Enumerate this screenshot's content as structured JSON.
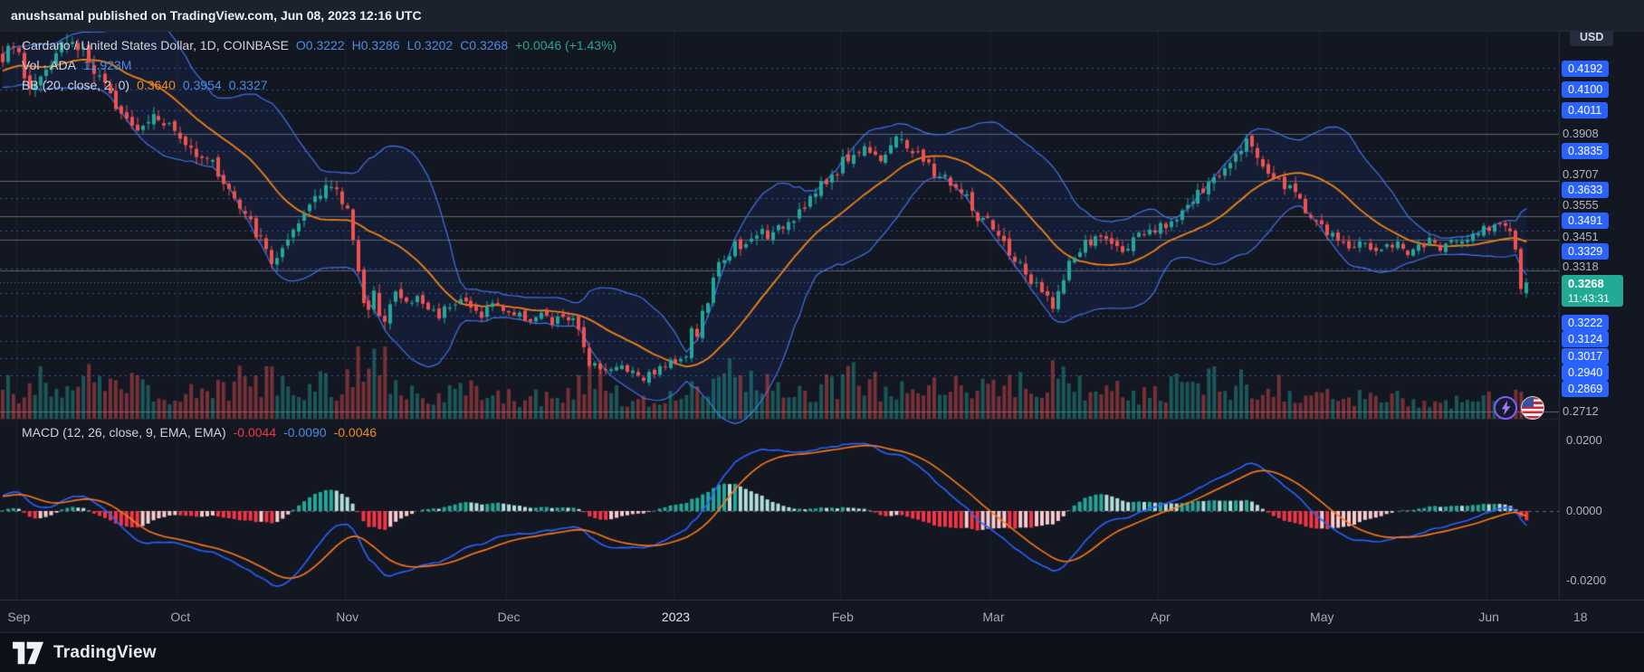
{
  "banner": {
    "text": "anushsamal published on TradingView.com, Jun 08, 2023 12:16 UTC"
  },
  "legend": {
    "title": "Cardano / United States Dollar, 1D, COINBASE",
    "ohlc": {
      "open": "O0.3222",
      "high": "H0.3286",
      "low": "L0.3202",
      "close": "C0.3268",
      "change": "+0.0046 (+1.43%)"
    },
    "volume_label": "Vol · ADA",
    "volume_value": "11.923M",
    "bb_label": "BB (20, close, 2, 0)",
    "bb_basis": "0.3640",
    "bb_upper": "0.3954",
    "bb_lower": "0.3327"
  },
  "macd_legend": {
    "label": "MACD (12, 26, close, 9, EMA, EMA)",
    "hist": "-0.0044",
    "macd": "-0.0090",
    "signal": "-0.0046"
  },
  "price_axis": {
    "currency_label": "USD",
    "labels": [
      {
        "text": "0.4192",
        "kind": "alert"
      },
      {
        "text": "0.4100",
        "kind": "alert"
      },
      {
        "text": "0.4011",
        "kind": "alert"
      },
      {
        "text": "0.3908",
        "kind": "tick"
      },
      {
        "text": "0.3835",
        "kind": "alert"
      },
      {
        "text": "0.3707",
        "kind": "tick"
      },
      {
        "text": "0.3633",
        "kind": "alert"
      },
      {
        "text": "0.3555",
        "kind": "tick"
      },
      {
        "text": "0.3491",
        "kind": "alert"
      },
      {
        "text": "0.3451",
        "kind": "tick"
      },
      {
        "text": "0.3329",
        "kind": "alert"
      },
      {
        "text": "0.3318",
        "kind": "tick"
      },
      {
        "text": "0.3222",
        "kind": "alert"
      },
      {
        "text": "0.3124",
        "kind": "alert"
      },
      {
        "text": "0.3017",
        "kind": "alert"
      },
      {
        "text": "0.2940",
        "kind": "alert"
      },
      {
        "text": "0.2869",
        "kind": "alert"
      },
      {
        "text": "0.2712",
        "kind": "tick"
      }
    ],
    "last_price": "0.3268",
    "countdown": "11:43:31"
  },
  "footer": {
    "brand": "TradingView"
  },
  "icons": {
    "boost": "lightning-icon",
    "flag": "us-flag-icon",
    "brand": "tradingview-logo-icon"
  },
  "colors": {
    "background": "#131722",
    "up": "#26a69a",
    "down": "#ef5350",
    "bb_band": "#4477f5",
    "bb_basis": "#f08319",
    "macd_line": "#2962ff",
    "signal_line": "#ff7a1a",
    "alert_blue": "#2962ff",
    "last_price_green": "#22ab94",
    "hist_pos": "#26a69a",
    "hist_pos_weak": "#b2dfdb",
    "hist_neg": "#f23645",
    "hist_neg_weak": "#fccbcd"
  },
  "chart_data": {
    "type": "candlestick",
    "title": "Cardano / United States Dollar, 1D, COINBASE",
    "interval": "1D",
    "exchange": "COINBASE",
    "price_axis_range": {
      "top": 0.435,
      "bottom": 0.268
    },
    "last_candle": {
      "open": 0.3222,
      "high": 0.3286,
      "low": 0.3202,
      "close": 0.3268,
      "change": "+0.0046",
      "change_pct": "+1.43%"
    },
    "volume_value_label": "11.923M",
    "bollinger": {
      "period": 20,
      "stdev_mult": 2,
      "basis": 0.364,
      "upper": 0.3954,
      "lower": 0.3327
    },
    "macd_params": {
      "fast": 12,
      "slow": 26,
      "signal": 9,
      "histogram_value": -0.0044,
      "macd_value": -0.009,
      "signal_value": -0.0046
    },
    "macd_axis": {
      "labels": [
        "0.0200",
        "0.0000",
        "-0.0200"
      ],
      "values": [
        0.02,
        0.0,
        -0.02
      ]
    },
    "alert_levels": [
      0.4192,
      0.41,
      0.4011,
      0.3835,
      0.3633,
      0.3491,
      0.3329,
      0.3222,
      0.3124,
      0.3017,
      0.294,
      0.2869
    ],
    "line_levels": [
      0.3908,
      0.3707,
      0.3555,
      0.3451,
      0.3318,
      0.2712
    ],
    "months": [
      {
        "label": "Sep",
        "day": 0
      },
      {
        "label": "Oct",
        "day": 30
      },
      {
        "label": "Nov",
        "day": 61
      },
      {
        "label": "Dec",
        "day": 91
      },
      {
        "label": "2023",
        "day": 122,
        "emph": true
      },
      {
        "label": "Feb",
        "day": 153
      },
      {
        "label": "Mar",
        "day": 181
      },
      {
        "label": "Apr",
        "day": 212
      },
      {
        "label": "May",
        "day": 242
      },
      {
        "label": "Jun",
        "day": 273
      },
      {
        "label": "18",
        "day": 290,
        "minor": true
      }
    ],
    "close_path": [
      [
        -3,
        0.424
      ],
      [
        -1,
        0.4305
      ],
      [
        1,
        0.418
      ],
      [
        2,
        0.41
      ],
      [
        4,
        0.4165
      ],
      [
        6,
        0.424
      ],
      [
        8,
        0.4325
      ],
      [
        10,
        0.43
      ],
      [
        12,
        0.4275
      ],
      [
        14,
        0.417
      ],
      [
        16,
        0.41
      ],
      [
        18,
        0.4045
      ],
      [
        20,
        0.399
      ],
      [
        22,
        0.3945
      ],
      [
        24,
        0.397
      ],
      [
        25,
        0.401
      ],
      [
        27,
        0.3965
      ],
      [
        29,
        0.392
      ],
      [
        31,
        0.3855
      ],
      [
        33,
        0.3835
      ],
      [
        35,
        0.3815
      ],
      [
        37,
        0.374
      ],
      [
        39,
        0.367
      ],
      [
        41,
        0.358
      ],
      [
        43,
        0.352
      ],
      [
        45,
        0.3445
      ],
      [
        47,
        0.336
      ],
      [
        49,
        0.34
      ],
      [
        51,
        0.347
      ],
      [
        53,
        0.356
      ],
      [
        55,
        0.365
      ],
      [
        57,
        0.3695
      ],
      [
        59,
        0.365
      ],
      [
        61,
        0.358
      ],
      [
        62,
        0.3475
      ],
      [
        63,
        0.334
      ],
      [
        64,
        0.318
      ],
      [
        65,
        0.3125
      ],
      [
        66,
        0.32
      ],
      [
        67,
        0.3155
      ],
      [
        68,
        0.313
      ],
      [
        70,
        0.322
      ],
      [
        72,
        0.3175
      ],
      [
        74,
        0.32
      ],
      [
        76,
        0.3155
      ],
      [
        78,
        0.313
      ],
      [
        80,
        0.318
      ],
      [
        82,
        0.32
      ],
      [
        84,
        0.3155
      ],
      [
        86,
        0.313
      ],
      [
        88,
        0.318
      ],
      [
        90,
        0.3155
      ],
      [
        92,
        0.313
      ],
      [
        95,
        0.311
      ],
      [
        97,
        0.313
      ],
      [
        99,
        0.309
      ],
      [
        101,
        0.3125
      ],
      [
        103,
        0.3095
      ],
      [
        104,
        0.305
      ],
      [
        105,
        0.2995
      ],
      [
        106,
        0.293
      ],
      [
        108,
        0.291
      ],
      [
        110,
        0.2885
      ],
      [
        112,
        0.291
      ],
      [
        114,
        0.2885
      ],
      [
        116,
        0.286
      ],
      [
        118,
        0.2885
      ],
      [
        120,
        0.291
      ],
      [
        122,
        0.2935
      ],
      [
        124,
        0.296
      ],
      [
        125,
        0.3065
      ],
      [
        126,
        0.304
      ],
      [
        127,
        0.313
      ],
      [
        128,
        0.319
      ],
      [
        129,
        0.327
      ],
      [
        130,
        0.3335
      ],
      [
        131,
        0.338
      ],
      [
        133,
        0.343
      ],
      [
        134,
        0.3395
      ],
      [
        136,
        0.345
      ],
      [
        138,
        0.349
      ],
      [
        140,
        0.3465
      ],
      [
        142,
        0.352
      ],
      [
        144,
        0.356
      ],
      [
        146,
        0.361
      ],
      [
        148,
        0.3655
      ],
      [
        150,
        0.37
      ],
      [
        152,
        0.376
      ],
      [
        154,
        0.381
      ],
      [
        156,
        0.3835
      ],
      [
        158,
        0.3855
      ],
      [
        160,
        0.381
      ],
      [
        162,
        0.385
      ],
      [
        164,
        0.389
      ],
      [
        166,
        0.3835
      ],
      [
        168,
        0.379
      ],
      [
        170,
        0.374
      ],
      [
        172,
        0.372
      ],
      [
        174,
        0.3675
      ],
      [
        176,
        0.363
      ],
      [
        178,
        0.354
      ],
      [
        180,
        0.352
      ],
      [
        182,
        0.3455
      ],
      [
        184,
        0.34
      ],
      [
        186,
        0.3335
      ],
      [
        188,
        0.327
      ],
      [
        190,
        0.322
      ],
      [
        192,
        0.318
      ],
      [
        193,
        0.3225
      ],
      [
        194,
        0.327
      ],
      [
        195,
        0.334
      ],
      [
        196,
        0.338
      ],
      [
        198,
        0.343
      ],
      [
        200,
        0.3455
      ],
      [
        202,
        0.346
      ],
      [
        204,
        0.341
      ],
      [
        206,
        0.343
      ],
      [
        208,
        0.346
      ],
      [
        210,
        0.3475
      ],
      [
        212,
        0.35
      ],
      [
        214,
        0.354
      ],
      [
        216,
        0.358
      ],
      [
        218,
        0.362
      ],
      [
        220,
        0.366
      ],
      [
        222,
        0.371
      ],
      [
        224,
        0.377
      ],
      [
        226,
        0.385
      ],
      [
        228,
        0.3885
      ],
      [
        230,
        0.381
      ],
      [
        232,
        0.375
      ],
      [
        234,
        0.371
      ],
      [
        236,
        0.367
      ],
      [
        238,
        0.363
      ],
      [
        240,
        0.355
      ],
      [
        242,
        0.35
      ],
      [
        244,
        0.346
      ],
      [
        246,
        0.344
      ],
      [
        248,
        0.342
      ],
      [
        250,
        0.344
      ],
      [
        252,
        0.34
      ],
      [
        254,
        0.342
      ],
      [
        256,
        0.344
      ],
      [
        258,
        0.34
      ],
      [
        260,
        0.342
      ],
      [
        262,
        0.344
      ],
      [
        264,
        0.342
      ],
      [
        266,
        0.344
      ],
      [
        268,
        0.346
      ],
      [
        270,
        0.348
      ],
      [
        272,
        0.35
      ],
      [
        274,
        0.352
      ],
      [
        275,
        0.354
      ],
      [
        276,
        0.3515
      ],
      [
        277,
        0.349
      ],
      [
        278,
        0.341
      ],
      [
        279,
        0.324
      ],
      [
        280,
        0.3268
      ]
    ],
    "volume_path": [
      [
        -3,
        0.5
      ],
      [
        0,
        0.45
      ],
      [
        3,
        0.65
      ],
      [
        6,
        0.5
      ],
      [
        9,
        0.6
      ],
      [
        13,
        0.7
      ],
      [
        16,
        0.5
      ],
      [
        20,
        0.5
      ],
      [
        23,
        0.4
      ],
      [
        27,
        0.42
      ],
      [
        30,
        0.4
      ],
      [
        34,
        0.48
      ],
      [
        38,
        0.42
      ],
      [
        41,
        0.55
      ],
      [
        44,
        0.5
      ],
      [
        47,
        0.7
      ],
      [
        50,
        0.5
      ],
      [
        53,
        0.48
      ],
      [
        56,
        0.55
      ],
      [
        59,
        0.4
      ],
      [
        62,
        0.75
      ],
      [
        64,
        1.0
      ],
      [
        66,
        0.9
      ],
      [
        68,
        0.75
      ],
      [
        70,
        0.55
      ],
      [
        73,
        0.5
      ],
      [
        76,
        0.42
      ],
      [
        80,
        0.4
      ],
      [
        84,
        0.42
      ],
      [
        88,
        0.36
      ],
      [
        92,
        0.34
      ],
      [
        96,
        0.3
      ],
      [
        100,
        0.32
      ],
      [
        104,
        0.5
      ],
      [
        106,
        0.62
      ],
      [
        110,
        0.4
      ],
      [
        114,
        0.3
      ],
      [
        118,
        0.27
      ],
      [
        122,
        0.3
      ],
      [
        126,
        0.42
      ],
      [
        129,
        0.58
      ],
      [
        132,
        0.62
      ],
      [
        135,
        0.5
      ],
      [
        139,
        0.45
      ],
      [
        143,
        0.52
      ],
      [
        147,
        0.48
      ],
      [
        151,
        0.52
      ],
      [
        155,
        0.58
      ],
      [
        159,
        0.48
      ],
      [
        163,
        0.52
      ],
      [
        167,
        0.44
      ],
      [
        171,
        0.48
      ],
      [
        175,
        0.42
      ],
      [
        179,
        0.48
      ],
      [
        183,
        0.55
      ],
      [
        186,
        0.62
      ],
      [
        189,
        0.52
      ],
      [
        192,
        0.58
      ],
      [
        195,
        0.52
      ],
      [
        198,
        0.44
      ],
      [
        202,
        0.4
      ],
      [
        206,
        0.36
      ],
      [
        210,
        0.4
      ],
      [
        214,
        0.44
      ],
      [
        218,
        0.48
      ],
      [
        222,
        0.52
      ],
      [
        226,
        0.58
      ],
      [
        228,
        0.52
      ],
      [
        232,
        0.48
      ],
      [
        236,
        0.44
      ],
      [
        240,
        0.4
      ],
      [
        244,
        0.36
      ],
      [
        248,
        0.33
      ],
      [
        252,
        0.3
      ],
      [
        256,
        0.28
      ],
      [
        260,
        0.3
      ],
      [
        264,
        0.28
      ],
      [
        268,
        0.26
      ],
      [
        272,
        0.28
      ],
      [
        275,
        0.33
      ],
      [
        277,
        0.38
      ],
      [
        279,
        0.55
      ],
      [
        280,
        0.42
      ]
    ]
  }
}
